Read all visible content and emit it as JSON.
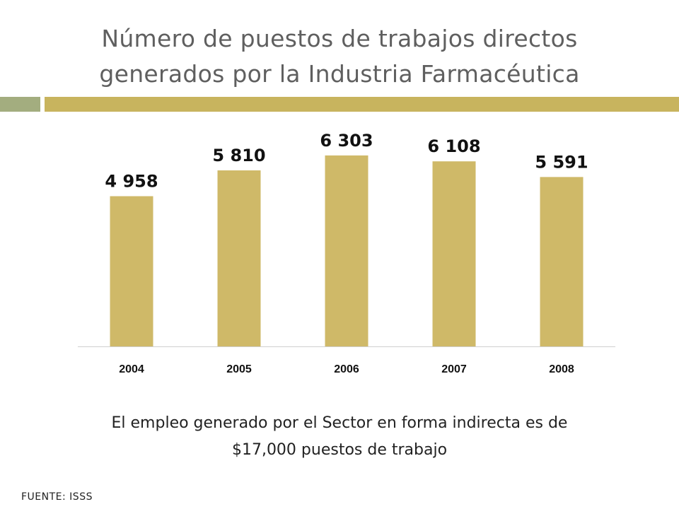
{
  "title_lines": [
    "Número de puestos de trabajos directos",
    "generados por la Industria Farmacéutica"
  ],
  "colors": {
    "bar": "#cfb968",
    "rule_left": "#a3ad7f",
    "rule_right": "#c8b45e",
    "title": "#5f5f5f"
  },
  "chart_data": {
    "type": "bar",
    "categories": [
      "2004",
      "2005",
      "2006",
      "2007",
      "2008"
    ],
    "values": [
      4958,
      5810,
      6303,
      6108,
      5591
    ],
    "data_labels": [
      "4 958",
      "5 810",
      "6 303",
      "6 108",
      "5 591"
    ],
    "title": "",
    "xlabel": "",
    "ylabel": "",
    "ylim": [
      0,
      7000
    ],
    "grid": false,
    "legend": "none"
  },
  "note_lines": [
    "El empleo generado por el Sector en forma indirecta es de",
    "$17,000 puestos de trabajo"
  ],
  "source": "FUENTE: ISSS"
}
